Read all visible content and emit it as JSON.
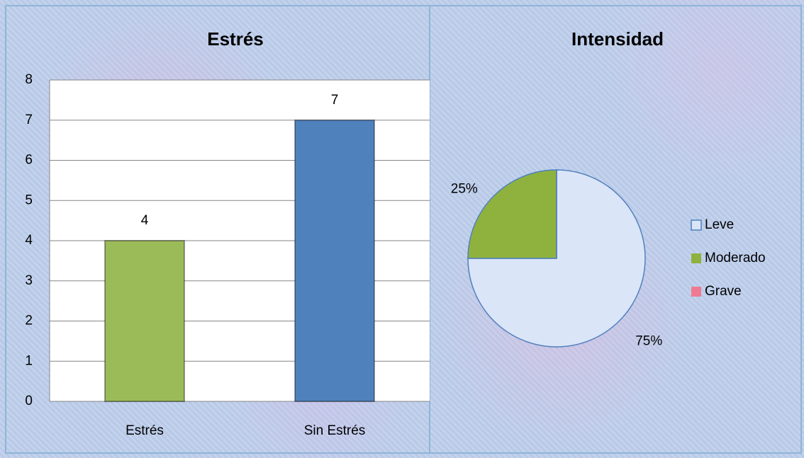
{
  "chart_data": [
    {
      "type": "bar",
      "title": "Estrés",
      "categories": [
        "Estrés",
        "Sin Estrés"
      ],
      "values": [
        4,
        7
      ],
      "colors": [
        "#9bbb59",
        "#4f81bd"
      ],
      "ylim": [
        0,
        8
      ],
      "yticks": [
        0,
        1,
        2,
        3,
        4,
        5,
        6,
        7,
        8
      ],
      "grid": true
    },
    {
      "type": "pie",
      "title": "Intensidad",
      "categories": [
        "Leve",
        "Moderado",
        "Grave"
      ],
      "values": [
        75,
        25,
        0
      ],
      "value_labels": [
        "75%",
        "25%",
        null
      ],
      "colors": [
        "#dbe5f8",
        "#8fb23e",
        "#f07a92"
      ],
      "legend": "right"
    }
  ]
}
